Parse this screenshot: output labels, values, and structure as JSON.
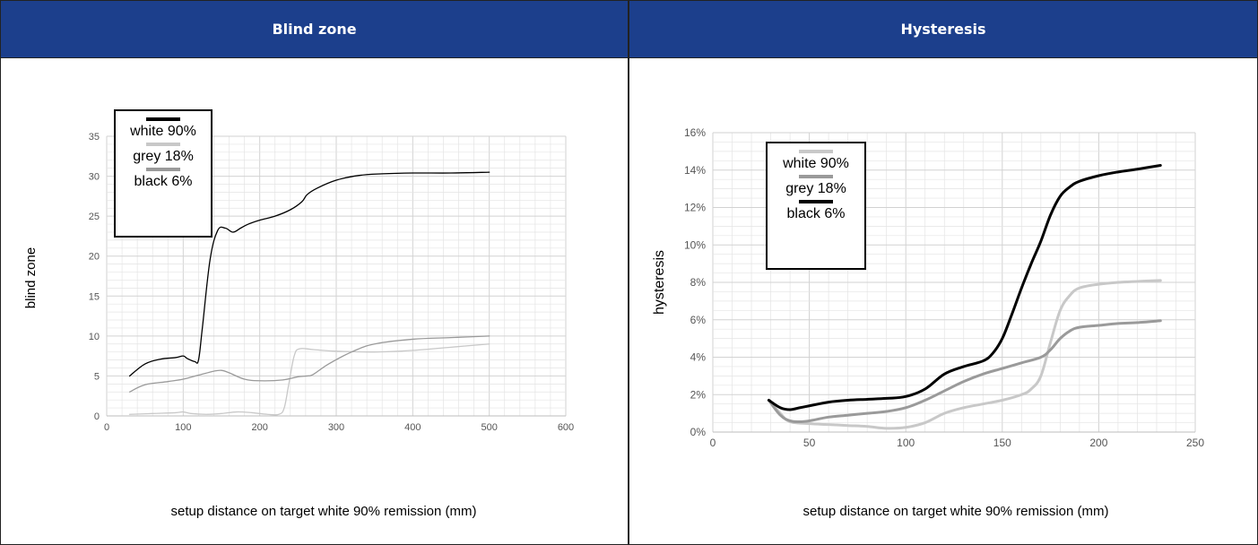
{
  "colors": {
    "header_bg": "#1c3f8c",
    "white_series": "#c8c8c8",
    "grey_series": "#9a9a9a",
    "black_series": "#000000",
    "grid": "#e4e4e4"
  },
  "chart_data": [
    {
      "type": "line",
      "title": "Blind zone",
      "xlabel": "setup distance on target white 90% remission (mm)",
      "ylabel": "blind zone",
      "xlim": [
        0,
        600
      ],
      "ylim": [
        0,
        35
      ],
      "xticks": [
        "0",
        "100",
        "200",
        "300",
        "400",
        "500",
        "600"
      ],
      "yticks": [
        "0",
        "5",
        "10",
        "15",
        "20",
        "25",
        "30",
        "35"
      ],
      "grid": true,
      "legend_placement": "top-left",
      "legend": [
        {
          "label": "white 90%",
          "color": "#000000"
        },
        {
          "label": "grey 18%",
          "color": "#c8c8c8"
        },
        {
          "label": "black 6%",
          "color": "#9a9a9a"
        }
      ],
      "series": [
        {
          "name": "white 90%",
          "color": "#000000",
          "width": 1.3,
          "x": [
            30,
            50,
            70,
            90,
            100,
            105,
            115,
            120,
            125,
            135,
            145,
            155,
            165,
            175,
            185,
            200,
            220,
            240,
            255,
            262,
            275,
            300,
            330,
            360,
            400,
            450,
            500
          ],
          "y": [
            5,
            6.5,
            7.1,
            7.3,
            7.5,
            7.2,
            6.8,
            7.0,
            11,
            19.5,
            23.2,
            23.5,
            23.0,
            23.5,
            24.0,
            24.5,
            25.0,
            25.8,
            26.8,
            27.7,
            28.5,
            29.5,
            30.1,
            30.3,
            30.4,
            30.4,
            30.5
          ]
        },
        {
          "name": "grey 18%",
          "color": "#c8c8c8",
          "width": 1.3,
          "x": [
            30,
            60,
            90,
            100,
            110,
            130,
            150,
            170,
            190,
            210,
            225,
            232,
            238,
            245,
            252,
            270,
            300,
            350,
            400,
            450,
            500
          ],
          "y": [
            0.2,
            0.3,
            0.4,
            0.5,
            0.3,
            0.2,
            0.3,
            0.5,
            0.4,
            0.2,
            0.2,
            1.0,
            4.0,
            7.5,
            8.4,
            8.3,
            8.1,
            8.0,
            8.2,
            8.6,
            9.0
          ]
        },
        {
          "name": "black 6%",
          "color": "#9a9a9a",
          "width": 1.3,
          "x": [
            30,
            50,
            80,
            100,
            120,
            140,
            150,
            160,
            180,
            200,
            230,
            250,
            262,
            270,
            290,
            320,
            350,
            400,
            450,
            500
          ],
          "y": [
            3.0,
            3.9,
            4.3,
            4.6,
            5.1,
            5.6,
            5.7,
            5.4,
            4.6,
            4.4,
            4.5,
            4.9,
            5.0,
            5.2,
            6.5,
            8.0,
            9.0,
            9.6,
            9.8,
            10.0
          ]
        }
      ]
    },
    {
      "type": "line",
      "title": "Hysteresis",
      "xlabel": "setup distance on target white 90% remission (mm)",
      "ylabel": "hysteresis",
      "xlim": [
        0,
        250
      ],
      "ylim": [
        0,
        16
      ],
      "xticks": [
        "0",
        "50",
        "100",
        "150",
        "200",
        "250"
      ],
      "yticks": [
        "0%",
        "2%",
        "4%",
        "6%",
        "8%",
        "10%",
        "12%",
        "14%",
        "16%"
      ],
      "grid": true,
      "legend_placement": "top-left",
      "legend": [
        {
          "label": "white 90%",
          "color": "#c8c8c8"
        },
        {
          "label": "grey 18%",
          "color": "#9a9a9a"
        },
        {
          "label": "black 6%",
          "color": "#000000"
        }
      ],
      "series": [
        {
          "name": "white 90%",
          "color": "#c8c8c8",
          "width": 3.0,
          "x": [
            29,
            35,
            40,
            50,
            60,
            70,
            80,
            90,
            100,
            110,
            120,
            130,
            140,
            150,
            160,
            165,
            170,
            175,
            180,
            185,
            190,
            200,
            210,
            220,
            232
          ],
          "y": [
            1.7,
            1.0,
            0.55,
            0.45,
            0.4,
            0.35,
            0.3,
            0.2,
            0.25,
            0.5,
            1.0,
            1.3,
            1.5,
            1.7,
            2.0,
            2.3,
            3.0,
            4.8,
            6.5,
            7.3,
            7.7,
            7.9,
            8.0,
            8.05,
            8.1
          ]
        },
        {
          "name": "grey 18%",
          "color": "#9a9a9a",
          "width": 3.0,
          "x": [
            29,
            35,
            40,
            45,
            50,
            60,
            70,
            80,
            90,
            100,
            110,
            120,
            130,
            140,
            150,
            160,
            170,
            175,
            180,
            185,
            190,
            200,
            210,
            220,
            232
          ],
          "y": [
            1.7,
            0.9,
            0.6,
            0.55,
            0.6,
            0.8,
            0.9,
            1.0,
            1.1,
            1.3,
            1.7,
            2.2,
            2.7,
            3.1,
            3.4,
            3.7,
            4.0,
            4.4,
            5.0,
            5.4,
            5.6,
            5.7,
            5.8,
            5.85,
            5.95
          ]
        },
        {
          "name": "black 6%",
          "color": "#000000",
          "width": 3.0,
          "x": [
            29,
            35,
            40,
            45,
            50,
            60,
            70,
            80,
            90,
            100,
            110,
            120,
            130,
            140,
            145,
            150,
            155,
            160,
            165,
            170,
            175,
            180,
            185,
            190,
            200,
            210,
            220,
            232
          ],
          "y": [
            1.7,
            1.3,
            1.2,
            1.3,
            1.4,
            1.6,
            1.7,
            1.75,
            1.8,
            1.9,
            2.3,
            3.1,
            3.5,
            3.8,
            4.2,
            5.0,
            6.3,
            7.7,
            9.0,
            10.2,
            11.6,
            12.6,
            13.1,
            13.4,
            13.7,
            13.9,
            14.05,
            14.25
          ]
        }
      ]
    }
  ]
}
